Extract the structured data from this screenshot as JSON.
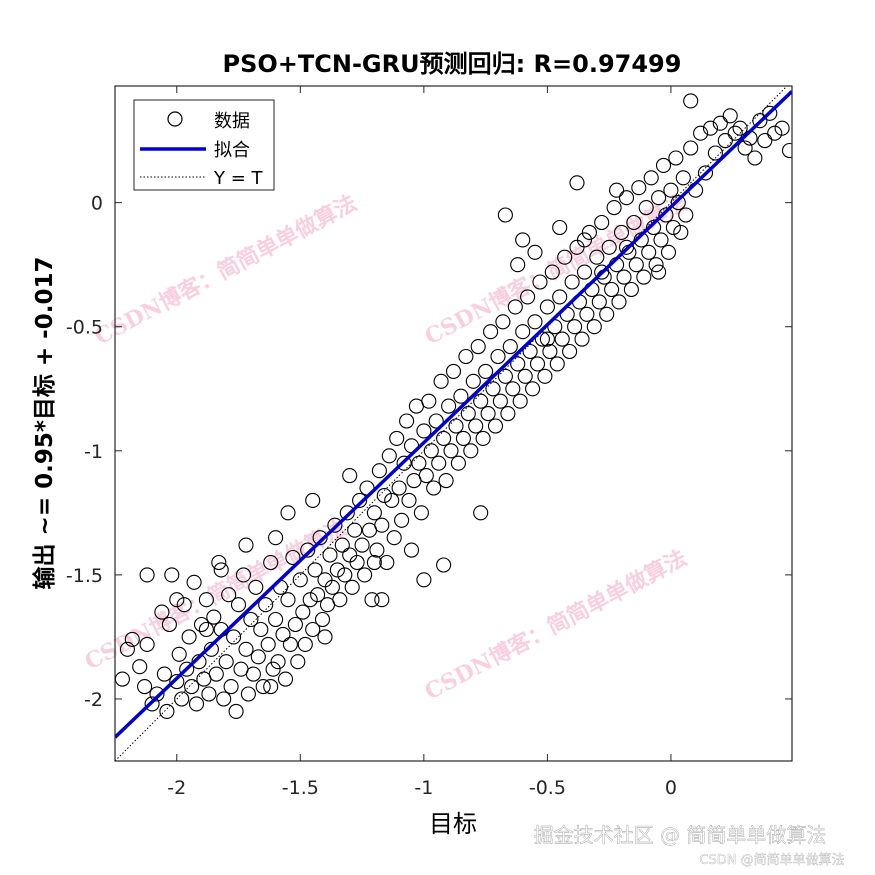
{
  "chart_data": {
    "type": "scatter",
    "title": "PSO+TCN-GRU预测回归: R=0.97499",
    "xlabel": "目标",
    "ylabel": "输出 ~= 0.95*目标 + -0.017",
    "xlim": [
      -2.25,
      0.49
    ],
    "ylim": [
      -2.25,
      0.47
    ],
    "xticks": [
      -2,
      -1.5,
      -1,
      -0.5,
      0
    ],
    "yticks": [
      -2,
      -1.5,
      -1,
      -0.5,
      0
    ],
    "xtick_labels": [
      "-2",
      "-1.5",
      "-1",
      "-0.5",
      "0"
    ],
    "ytick_labels": [
      "-2",
      "-1.5",
      "-1",
      "-0.5",
      "0"
    ],
    "grid": false,
    "legend_position": "top-left",
    "fit": {
      "slope": 0.95,
      "intercept": -0.017
    },
    "R": 0.97499,
    "series": [
      {
        "name": "数据",
        "kind": "circle-markers",
        "color": "#000000",
        "points": [
          [
            -2.22,
            -1.92
          ],
          [
            -2.2,
            -1.8
          ],
          [
            -2.18,
            -1.76
          ],
          [
            -2.15,
            -1.87
          ],
          [
            -2.13,
            -1.95
          ],
          [
            -2.12,
            -1.78
          ],
          [
            -2.1,
            -2.02
          ],
          [
            -2.08,
            -1.98
          ],
          [
            -2.06,
            -1.65
          ],
          [
            -2.05,
            -1.9
          ],
          [
            -2.04,
            -2.05
          ],
          [
            -2.03,
            -1.7
          ],
          [
            -2.02,
            -1.5
          ],
          [
            -2.0,
            -1.93
          ],
          [
            -1.99,
            -1.82
          ],
          [
            -1.98,
            -2.0
          ],
          [
            -1.97,
            -1.62
          ],
          [
            -1.96,
            -1.88
          ],
          [
            -1.95,
            -1.75
          ],
          [
            -1.94,
            -1.95
          ],
          [
            -1.93,
            -1.53
          ],
          [
            -1.92,
            -2.02
          ],
          [
            -1.91,
            -1.85
          ],
          [
            -1.9,
            -1.7
          ],
          [
            -1.89,
            -1.92
          ],
          [
            -1.88,
            -1.6
          ],
          [
            -1.87,
            -1.98
          ],
          [
            -1.86,
            -1.8
          ],
          [
            -1.85,
            -1.67
          ],
          [
            -1.84,
            -1.9
          ],
          [
            -1.83,
            -1.45
          ],
          [
            -1.82,
            -1.72
          ],
          [
            -1.81,
            -2.0
          ],
          [
            -1.8,
            -1.85
          ],
          [
            -1.79,
            -1.58
          ],
          [
            -1.78,
            -1.95
          ],
          [
            -1.77,
            -1.75
          ],
          [
            -1.76,
            -2.05
          ],
          [
            -1.75,
            -1.62
          ],
          [
            -1.74,
            -1.88
          ],
          [
            -1.73,
            -1.5
          ],
          [
            -1.72,
            -1.8
          ],
          [
            -1.71,
            -1.98
          ],
          [
            -1.7,
            -1.68
          ],
          [
            -1.69,
            -1.9
          ],
          [
            -1.68,
            -1.55
          ],
          [
            -1.67,
            -1.83
          ],
          [
            -1.66,
            -1.72
          ],
          [
            -1.65,
            -1.95
          ],
          [
            -1.64,
            -1.62
          ],
          [
            -1.63,
            -1.78
          ],
          [
            -1.62,
            -1.45
          ],
          [
            -1.61,
            -1.88
          ],
          [
            -1.6,
            -1.68
          ],
          [
            -1.59,
            -1.85
          ],
          [
            -1.58,
            -1.55
          ],
          [
            -1.57,
            -1.74
          ],
          [
            -1.56,
            -1.92
          ],
          [
            -1.55,
            -1.6
          ],
          [
            -1.54,
            -1.78
          ],
          [
            -1.53,
            -1.43
          ],
          [
            -1.52,
            -1.7
          ],
          [
            -1.51,
            -1.85
          ],
          [
            -1.5,
            -1.52
          ],
          [
            -1.49,
            -1.65
          ],
          [
            -1.48,
            -1.78
          ],
          [
            -1.47,
            -1.4
          ],
          [
            -1.46,
            -1.6
          ],
          [
            -1.45,
            -1.72
          ],
          [
            -1.44,
            -1.48
          ],
          [
            -1.43,
            -1.58
          ],
          [
            -1.42,
            -1.35
          ],
          [
            -1.41,
            -1.68
          ],
          [
            -1.4,
            -1.52
          ],
          [
            -1.39,
            -1.62
          ],
          [
            -1.38,
            -1.42
          ],
          [
            -1.37,
            -1.55
          ],
          [
            -1.36,
            -1.3
          ],
          [
            -1.35,
            -1.48
          ],
          [
            -1.34,
            -1.6
          ],
          [
            -1.33,
            -1.38
          ],
          [
            -1.32,
            -1.5
          ],
          [
            -1.31,
            -1.25
          ],
          [
            -1.3,
            -1.42
          ],
          [
            -1.29,
            -1.55
          ],
          [
            -1.28,
            -1.32
          ],
          [
            -1.27,
            -1.45
          ],
          [
            -1.26,
            -1.2
          ],
          [
            -1.25,
            -1.38
          ],
          [
            -1.24,
            -1.5
          ],
          [
            -1.23,
            -1.15
          ],
          [
            -1.22,
            -1.32
          ],
          [
            -1.21,
            -1.6
          ],
          [
            -1.2,
            -1.25
          ],
          [
            -1.19,
            -1.4
          ],
          [
            -1.18,
            -1.08
          ],
          [
            -1.17,
            -1.3
          ],
          [
            -1.16,
            -1.18
          ],
          [
            -1.15,
            -1.45
          ],
          [
            -1.14,
            -1.02
          ],
          [
            -1.13,
            -1.2
          ],
          [
            -1.12,
            -1.35
          ],
          [
            -1.11,
            -0.95
          ],
          [
            -1.1,
            -1.15
          ],
          [
            -1.09,
            -1.28
          ],
          [
            -1.08,
            -1.05
          ],
          [
            -1.07,
            -0.88
          ],
          [
            -1.06,
            -1.2
          ],
          [
            -1.05,
            -0.98
          ],
          [
            -1.04,
            -1.12
          ],
          [
            -1.03,
            -0.82
          ],
          [
            -1.02,
            -1.05
          ],
          [
            -1.01,
            -1.25
          ],
          [
            -1.0,
            -0.92
          ],
          [
            -0.99,
            -1.1
          ],
          [
            -0.98,
            -0.8
          ],
          [
            -0.97,
            -1.0
          ],
          [
            -0.96,
            -1.15
          ],
          [
            -0.95,
            -0.88
          ],
          [
            -0.94,
            -1.05
          ],
          [
            -0.93,
            -0.72
          ],
          [
            -0.92,
            -0.95
          ],
          [
            -0.91,
            -1.12
          ],
          [
            -0.9,
            -0.82
          ],
          [
            -0.89,
            -1.0
          ],
          [
            -0.88,
            -0.68
          ],
          [
            -0.87,
            -0.9
          ],
          [
            -0.86,
            -1.05
          ],
          [
            -0.85,
            -0.78
          ],
          [
            -0.84,
            -0.95
          ],
          [
            -0.83,
            -0.62
          ],
          [
            -0.82,
            -0.85
          ],
          [
            -0.81,
            -1.0
          ],
          [
            -0.8,
            -0.72
          ],
          [
            -0.79,
            -0.9
          ],
          [
            -0.78,
            -0.58
          ],
          [
            -0.77,
            -0.8
          ],
          [
            -0.76,
            -0.95
          ],
          [
            -0.75,
            -0.68
          ],
          [
            -0.74,
            -0.85
          ],
          [
            -0.73,
            -0.52
          ],
          [
            -0.72,
            -0.75
          ],
          [
            -0.71,
            -0.9
          ],
          [
            -0.7,
            -0.62
          ],
          [
            -0.69,
            -0.8
          ],
          [
            -0.68,
            -0.48
          ],
          [
            -0.67,
            -0.7
          ],
          [
            -0.66,
            -0.85
          ],
          [
            -0.65,
            -0.58
          ],
          [
            -0.64,
            -0.75
          ],
          [
            -0.63,
            -0.42
          ],
          [
            -0.62,
            -0.65
          ],
          [
            -0.61,
            -0.8
          ],
          [
            -0.6,
            -0.52
          ],
          [
            -0.59,
            -0.7
          ],
          [
            -0.58,
            -0.38
          ],
          [
            -0.57,
            -0.6
          ],
          [
            -0.56,
            -0.75
          ],
          [
            -0.55,
            -0.48
          ],
          [
            -0.54,
            -0.65
          ],
          [
            -0.53,
            -0.32
          ],
          [
            -0.52,
            -0.55
          ],
          [
            -0.51,
            -0.7
          ],
          [
            -0.5,
            -0.42
          ],
          [
            -0.49,
            -0.6
          ],
          [
            -0.48,
            -0.28
          ],
          [
            -0.47,
            -0.5
          ],
          [
            -0.46,
            -0.65
          ],
          [
            -0.45,
            -0.38
          ],
          [
            -0.44,
            -0.55
          ],
          [
            -0.43,
            -0.22
          ],
          [
            -0.42,
            -0.45
          ],
          [
            -0.41,
            -0.6
          ],
          [
            -0.4,
            -0.32
          ],
          [
            -0.39,
            -0.5
          ],
          [
            -0.38,
            -0.18
          ],
          [
            -0.37,
            -0.4
          ],
          [
            -0.36,
            -0.55
          ],
          [
            -0.35,
            -0.28
          ],
          [
            -0.34,
            -0.45
          ],
          [
            -0.33,
            -0.12
          ],
          [
            -0.32,
            -0.35
          ],
          [
            -0.31,
            -0.5
          ],
          [
            -0.3,
            -0.22
          ],
          [
            -0.29,
            -0.4
          ],
          [
            -0.28,
            -0.08
          ],
          [
            -0.27,
            -0.3
          ],
          [
            -0.26,
            -0.45
          ],
          [
            -0.25,
            -0.18
          ],
          [
            -0.24,
            -0.35
          ],
          [
            -0.23,
            -0.02
          ],
          [
            -0.22,
            -0.25
          ],
          [
            -0.21,
            -0.4
          ],
          [
            -0.2,
            -0.12
          ],
          [
            -0.19,
            -0.3
          ],
          [
            -0.18,
            0.02
          ],
          [
            -0.17,
            -0.2
          ],
          [
            -0.16,
            -0.35
          ],
          [
            -0.15,
            -0.08
          ],
          [
            -0.14,
            -0.25
          ],
          [
            -0.13,
            0.06
          ],
          [
            -0.12,
            -0.15
          ],
          [
            -0.11,
            -0.3
          ],
          [
            -0.1,
            -0.02
          ],
          [
            -0.09,
            -0.2
          ],
          [
            -0.08,
            0.1
          ],
          [
            -0.07,
            -0.1
          ],
          [
            -0.06,
            -0.25
          ],
          [
            -0.05,
            0.02
          ],
          [
            -0.04,
            -0.15
          ],
          [
            -0.03,
            0.15
          ],
          [
            -0.02,
            -0.05
          ],
          [
            -0.01,
            -0.2
          ],
          [
            0.0,
            0.05
          ],
          [
            0.01,
            -0.1
          ],
          [
            0.02,
            0.18
          ],
          [
            0.03,
            0.0
          ],
          [
            0.04,
            -0.12
          ],
          [
            0.05,
            0.1
          ],
          [
            0.06,
            -0.05
          ],
          [
            0.08,
            0.22
          ],
          [
            0.1,
            0.05
          ],
          [
            0.12,
            0.28
          ],
          [
            0.14,
            0.12
          ],
          [
            0.16,
            0.3
          ],
          [
            0.18,
            0.2
          ],
          [
            0.2,
            0.32
          ],
          [
            0.22,
            0.25
          ],
          [
            0.24,
            0.35
          ],
          [
            0.26,
            0.28
          ],
          [
            0.28,
            0.3
          ],
          [
            0.3,
            0.22
          ],
          [
            0.32,
            0.26
          ],
          [
            0.34,
            0.18
          ],
          [
            0.36,
            0.33
          ],
          [
            0.38,
            0.25
          ],
          [
            0.4,
            0.36
          ],
          [
            0.42,
            0.28
          ],
          [
            0.45,
            0.3
          ],
          [
            0.48,
            0.21
          ],
          [
            -0.38,
            0.08
          ],
          [
            0.08,
            0.41
          ],
          [
            -0.67,
            -0.05
          ],
          [
            -0.77,
            -1.25
          ],
          [
            -0.92,
            -1.46
          ],
          [
            -1.17,
            -1.6
          ],
          [
            -2.12,
            -1.5
          ],
          [
            -1.05,
            -1.4
          ],
          [
            -1.0,
            -1.52
          ],
          [
            -1.2,
            -1.45
          ],
          [
            -0.28,
            -0.28
          ],
          [
            -0.05,
            -0.28
          ],
          [
            -0.45,
            -0.1
          ],
          [
            -0.55,
            -0.2
          ],
          [
            -0.62,
            -0.25
          ],
          [
            -0.35,
            -0.15
          ],
          [
            -0.18,
            -0.18
          ],
          [
            -0.5,
            -0.55
          ],
          [
            -0.6,
            -0.15
          ],
          [
            -0.22,
            0.05
          ],
          [
            -1.6,
            -1.35
          ],
          [
            -1.55,
            -1.25
          ],
          [
            -1.3,
            -1.1
          ],
          [
            -1.45,
            -1.2
          ],
          [
            -1.72,
            -1.38
          ],
          [
            -1.82,
            -1.48
          ],
          [
            -1.4,
            -1.75
          ],
          [
            -1.62,
            -1.95
          ],
          [
            -1.88,
            -1.72
          ],
          [
            -2.0,
            -1.6
          ]
        ]
      },
      {
        "name": "拟合",
        "kind": "line",
        "color": "#0000d0"
      },
      {
        "name": "Y = T",
        "kind": "dotted-line",
        "color": "#000000"
      }
    ],
    "watermarks": [
      "CSDN博客：简简单单做算法",
      "CSDN博客：简简单单做算法",
      "CSDN博客：简简单单做算法",
      "CSDN博客：简简单单做算法"
    ],
    "footer": {
      "main": "掘金技术社区 @ 简简单单做算法",
      "sub": "CSDN @简简单单做算法"
    }
  }
}
